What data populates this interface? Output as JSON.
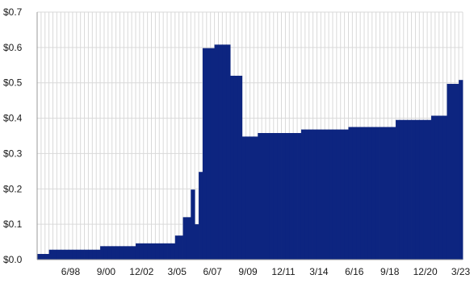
{
  "chart_data": {
    "type": "bar",
    "title": "",
    "xlabel": "",
    "ylabel": "",
    "ylim": [
      0,
      0.7
    ],
    "grid": true,
    "legend": "none",
    "bar_color": "#0d2580",
    "grid_color": "#d9d9d9",
    "axis_color": "#9a9a9a",
    "y_ticks": [
      "$0.0",
      "$0.1",
      "$0.2",
      "$0.3",
      "$0.4",
      "$0.5",
      "$0.6",
      "$0.7"
    ],
    "x_ticks": [
      "6/98",
      "9/00",
      "12/02",
      "3/05",
      "6/07",
      "9/09",
      "12/11",
      "3/14",
      "6/16",
      "9/18",
      "12/20",
      "3/23"
    ],
    "x_tick_positions": [
      8,
      17,
      26,
      35,
      44,
      53,
      62,
      71,
      80,
      89,
      98,
      107
    ],
    "period_count": 108,
    "values": [
      0.016,
      0.016,
      0.016,
      0.028,
      0.028,
      0.028,
      0.028,
      0.028,
      0.028,
      0.028,
      0.028,
      0.028,
      0.028,
      0.028,
      0.028,
      0.028,
      0.038,
      0.038,
      0.038,
      0.038,
      0.038,
      0.038,
      0.038,
      0.038,
      0.038,
      0.046,
      0.046,
      0.046,
      0.046,
      0.046,
      0.046,
      0.046,
      0.046,
      0.046,
      0.046,
      0.068,
      0.068,
      0.12,
      0.12,
      0.198,
      0.1,
      0.248,
      0.598,
      0.598,
      0.598,
      0.608,
      0.608,
      0.608,
      0.608,
      0.52,
      0.52,
      0.52,
      0.348,
      0.348,
      0.348,
      0.348,
      0.358,
      0.358,
      0.358,
      0.358,
      0.358,
      0.358,
      0.358,
      0.358,
      0.358,
      0.358,
      0.358,
      0.368,
      0.368,
      0.368,
      0.368,
      0.368,
      0.368,
      0.368,
      0.368,
      0.368,
      0.368,
      0.368,
      0.368,
      0.375,
      0.375,
      0.375,
      0.375,
      0.375,
      0.375,
      0.375,
      0.375,
      0.375,
      0.375,
      0.375,
      0.375,
      0.395,
      0.395,
      0.395,
      0.395,
      0.395,
      0.395,
      0.395,
      0.395,
      0.395,
      0.407,
      0.407,
      0.407,
      0.407,
      0.497,
      0.497,
      0.497,
      0.508
    ]
  }
}
